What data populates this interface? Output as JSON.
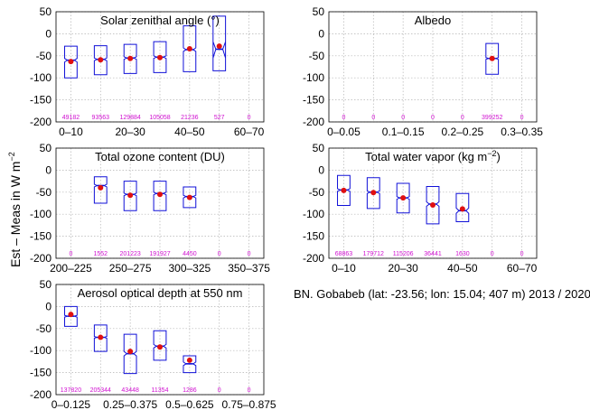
{
  "figure": {
    "ylabel": "Est – Meas in W m",
    "ylabel_sup": "−2",
    "station_label": "BN. Gobabeb (lat: -23.56; lon: 15.04; 407 m) 2013 / 2020"
  },
  "colors": {
    "box": "#1010d8",
    "mean": "#e01010",
    "count": "#d010d0",
    "grid": "#b4b4b4"
  },
  "chart_data": [
    {
      "type": "box",
      "title": "Solar zenithal angle (°)",
      "ylim": [
        -200,
        50
      ],
      "yticks": [
        50,
        0,
        -50,
        -100,
        -150,
        -200
      ],
      "categories": [
        "0–10",
        "10–20",
        "20–30",
        "30–40",
        "40–50",
        "50–60",
        "60–70"
      ],
      "tick_labels": [
        "0–10",
        "",
        "20–30",
        "",
        "40–50",
        "",
        "60–70"
      ],
      "boxes": [
        {
          "q1": -100,
          "median": -60,
          "q3": -28,
          "notch_lo": -64,
          "notch_hi": -56,
          "mean": -63,
          "count": "49182"
        },
        {
          "q1": -93,
          "median": -58,
          "q3": -27,
          "notch_lo": -61,
          "notch_hi": -55,
          "mean": -59,
          "count": "93563"
        },
        {
          "q1": -90,
          "median": -55,
          "q3": -24,
          "notch_lo": -58,
          "notch_hi": -52,
          "mean": -56,
          "count": "129884"
        },
        {
          "q1": -88,
          "median": -53,
          "q3": -18,
          "notch_lo": -56,
          "notch_hi": -50,
          "mean": -54,
          "count": "105058"
        },
        {
          "q1": -86,
          "median": -36,
          "q3": 18,
          "notch_lo": -40,
          "notch_hi": -32,
          "mean": -34,
          "count": "21236"
        },
        {
          "q1": -84,
          "median": -35,
          "q3": 40,
          "notch_lo": -18,
          "notch_hi": -55,
          "mean": -28,
          "count": "527"
        },
        {
          "q1": null,
          "median": null,
          "q3": null,
          "mean": null,
          "count": "0"
        }
      ]
    },
    {
      "type": "box",
      "title": "Albedo",
      "ylim": [
        -200,
        50
      ],
      "yticks": [
        50,
        0,
        -50,
        -100,
        -150,
        -200
      ],
      "categories": [
        "0–0.05",
        "0.05–0.1",
        "0.1–0.15",
        "0.15–0.2",
        "0.2–0.25",
        "0.25–0.3",
        "0.3–0.35"
      ],
      "tick_labels": [
        "0–0.05",
        "",
        "0.1–0.15",
        "",
        "0.2–0.25",
        "",
        "0.3–0.35"
      ],
      "boxes": [
        {
          "q1": null,
          "count": "0"
        },
        {
          "q1": null,
          "count": "0"
        },
        {
          "q1": null,
          "count": "0"
        },
        {
          "q1": null,
          "count": "0"
        },
        {
          "q1": null,
          "count": "0"
        },
        {
          "q1": -92,
          "median": -56,
          "q3": -22,
          "notch_lo": -58,
          "notch_hi": -54,
          "mean": -56,
          "count": "399252"
        },
        {
          "q1": null,
          "count": "0"
        }
      ]
    },
    {
      "type": "box",
      "title": "Total ozone content (DU)",
      "ylim": [
        -200,
        50
      ],
      "yticks": [
        50,
        0,
        -50,
        -100,
        -150,
        -200
      ],
      "categories": [
        "200–225",
        "225–250",
        "250–275",
        "275–300",
        "300–325",
        "325–350",
        "350–375"
      ],
      "tick_labels": [
        "200–225",
        "",
        "250–275",
        "",
        "300–325",
        "",
        "350–375"
      ],
      "boxes": [
        {
          "q1": null,
          "count": "0"
        },
        {
          "q1": -75,
          "median": -35,
          "q3": -15,
          "notch_lo": -38,
          "notch_hi": -32,
          "mean": -40,
          "count": "1552"
        },
        {
          "q1": -92,
          "median": -55,
          "q3": -25,
          "notch_lo": -58,
          "notch_hi": -52,
          "mean": -57,
          "count": "201223"
        },
        {
          "q1": -92,
          "median": -53,
          "q3": -25,
          "notch_lo": -56,
          "notch_hi": -50,
          "mean": -55,
          "count": "191927"
        },
        {
          "q1": -85,
          "median": -60,
          "q3": -38,
          "notch_lo": -63,
          "notch_hi": -57,
          "mean": -62,
          "count": "4450"
        },
        {
          "q1": null,
          "count": "0"
        },
        {
          "q1": null,
          "count": "0"
        }
      ]
    },
    {
      "type": "box",
      "title": "Total water vapor (kg m",
      "title_sup": "−2",
      "title_end": ")",
      "ylim": [
        -200,
        50
      ],
      "yticks": [
        50,
        0,
        -50,
        -100,
        -150,
        -200
      ],
      "categories": [
        "0–10",
        "10–20",
        "20–30",
        "30–40",
        "40–50",
        "50–60",
        "60–70"
      ],
      "tick_labels": [
        "0–10",
        "",
        "20–30",
        "",
        "40–50",
        "",
        "60–70"
      ],
      "boxes": [
        {
          "q1": -80,
          "median": -45,
          "q3": -12,
          "notch_lo": -48,
          "notch_hi": -42,
          "mean": -46,
          "count": "68863"
        },
        {
          "q1": -87,
          "median": -50,
          "q3": -17,
          "notch_lo": -53,
          "notch_hi": -47,
          "mean": -51,
          "count": "179712"
        },
        {
          "q1": -97,
          "median": -63,
          "q3": -30,
          "notch_lo": -66,
          "notch_hi": -60,
          "mean": -63,
          "count": "115206"
        },
        {
          "q1": -122,
          "median": -77,
          "q3": -37,
          "notch_lo": -82,
          "notch_hi": -72,
          "mean": -79,
          "count": "36441"
        },
        {
          "q1": -117,
          "median": -92,
          "q3": -53,
          "notch_lo": -98,
          "notch_hi": -86,
          "mean": -88,
          "count": "1630"
        },
        {
          "q1": null,
          "count": "0"
        },
        {
          "q1": null,
          "count": "0"
        }
      ]
    },
    {
      "type": "box",
      "title": "Aerosol optical depth at 550 nm",
      "ylim": [
        -200,
        50
      ],
      "yticks": [
        50,
        0,
        -50,
        -100,
        -150,
        -200
      ],
      "categories": [
        "0–0.125",
        "0.125–0.25",
        "0.25–0.375",
        "0.375–0.5",
        "0.5–0.625",
        "0.625–0.75",
        "0.75–0.875"
      ],
      "tick_labels": [
        "0–0.125",
        "",
        "0.25–0.375",
        "",
        "0.5–0.625",
        "",
        "0.75–0.875"
      ],
      "boxes": [
        {
          "q1": -45,
          "median": -22,
          "q3": 0,
          "notch_lo": -24,
          "notch_hi": -20,
          "mean": -18,
          "count": "137820"
        },
        {
          "q1": -102,
          "median": -70,
          "q3": -42,
          "notch_lo": -72,
          "notch_hi": -68,
          "mean": -70,
          "count": "205344"
        },
        {
          "q1": -152,
          "median": -107,
          "q3": -63,
          "notch_lo": -112,
          "notch_hi": -102,
          "mean": -102,
          "count": "43448"
        },
        {
          "q1": -122,
          "median": -90,
          "q3": -55,
          "notch_lo": -94,
          "notch_hi": -86,
          "mean": -92,
          "count": "11354"
        },
        {
          "q1": -150,
          "median": -130,
          "q3": -112,
          "notch_lo": -134,
          "notch_hi": -126,
          "mean": -122,
          "count": "1286"
        },
        {
          "q1": null,
          "count": "0"
        },
        {
          "q1": null,
          "count": "0"
        }
      ]
    }
  ]
}
